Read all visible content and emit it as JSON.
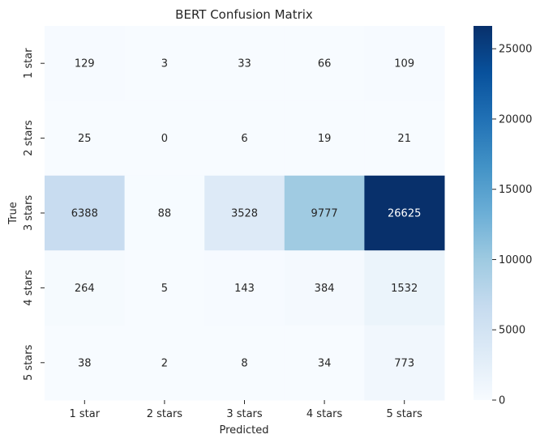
{
  "chart_data": {
    "type": "heatmap",
    "title": "BERT Confusion Matrix",
    "xlabel": "Predicted",
    "ylabel": "True",
    "x_categories": [
      "1 star",
      "2 stars",
      "3 stars",
      "4 stars",
      "5 stars"
    ],
    "y_categories": [
      "1 star",
      "2 stars",
      "3 stars",
      "4 stars",
      "5 stars"
    ],
    "values": [
      [
        129,
        3,
        33,
        66,
        109
      ],
      [
        25,
        0,
        6,
        19,
        21
      ],
      [
        6388,
        88,
        3528,
        9777,
        26625
      ],
      [
        264,
        5,
        143,
        384,
        1532
      ],
      [
        38,
        2,
        8,
        34,
        773
      ]
    ],
    "colorbar": {
      "colormap": "Blues",
      "range": [
        0,
        26625
      ],
      "ticks": [
        0,
        5000,
        10000,
        15000,
        20000,
        25000
      ]
    }
  }
}
